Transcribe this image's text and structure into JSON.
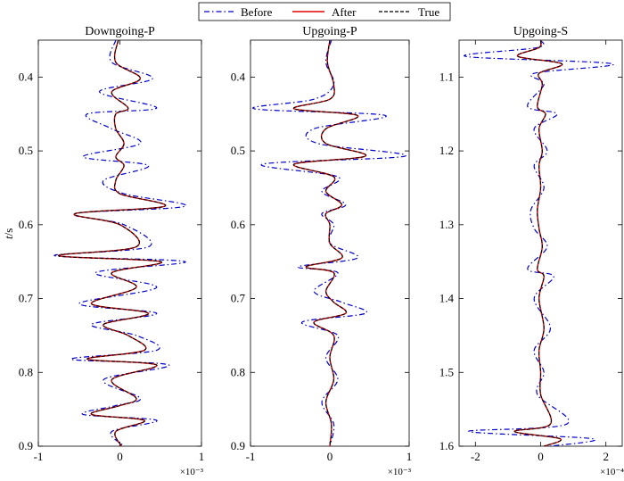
{
  "legend": {
    "entries": [
      {
        "label": "Before",
        "color": "#0000cc",
        "dash": "dashdot"
      },
      {
        "label": "After",
        "color": "#e00000",
        "dash": "solid"
      },
      {
        "label": "True",
        "color": "#000000",
        "dash": "dashed"
      }
    ]
  },
  "chart_data": [
    {
      "type": "line",
      "title": "Downgoing-P",
      "xlabel": "",
      "ylabel": "t/s",
      "xlim": [
        -1,
        1
      ],
      "xticks": [
        -1,
        0,
        1
      ],
      "xtick_labels": [
        "-1",
        "0",
        "1"
      ],
      "x_exponent": "×10⁻³",
      "ylim": [
        0.35,
        0.9
      ],
      "yticks": [
        0.4,
        0.5,
        0.6,
        0.7,
        0.8,
        0.9
      ],
      "ytick_labels": [
        "0.4",
        "0.5",
        "0.6",
        "0.7",
        "0.8",
        "0.9"
      ],
      "x_scale": 1,
      "series": [
        {
          "name": "Before",
          "t": [
            0.35,
            0.38,
            0.402,
            0.42,
            0.442,
            0.45,
            0.47,
            0.49,
            0.508,
            0.52,
            0.54,
            0.558,
            0.575,
            0.585,
            0.6,
            0.63,
            0.642,
            0.65,
            0.665,
            0.685,
            0.707,
            0.72,
            0.735,
            0.75,
            0.77,
            0.782,
            0.79,
            0.81,
            0.835,
            0.845,
            0.857,
            0.865,
            0.88,
            0.9
          ],
          "x": [
            -0.05,
            -0.1,
            0.4,
            -0.25,
            0.45,
            -0.4,
            -0.1,
            0.25,
            -0.45,
            0.35,
            -0.2,
            0.05,
            0.8,
            -0.55,
            0.05,
            0.35,
            -0.8,
            0.8,
            -0.3,
            0.45,
            -0.5,
            0.45,
            -0.35,
            0.2,
            0.45,
            -0.6,
            0.6,
            -0.2,
            0.25,
            -0.05,
            -0.45,
            0.45,
            -0.1,
            0.05
          ]
        },
        {
          "name": "After",
          "t": [
            0.35,
            0.38,
            0.402,
            0.42,
            0.442,
            0.45,
            0.47,
            0.49,
            0.508,
            0.52,
            0.54,
            0.558,
            0.575,
            0.585,
            0.6,
            0.63,
            0.642,
            0.65,
            0.665,
            0.685,
            0.707,
            0.72,
            0.735,
            0.75,
            0.77,
            0.782,
            0.79,
            0.81,
            0.835,
            0.845,
            0.857,
            0.865,
            0.88,
            0.9
          ],
          "x": [
            -0.02,
            -0.05,
            0.25,
            -0.1,
            0.1,
            -0.05,
            -0.05,
            0.05,
            -0.05,
            0.05,
            -0.05,
            0.0,
            0.55,
            -0.55,
            0.0,
            0.2,
            -0.75,
            0.5,
            -0.1,
            0.2,
            -0.35,
            0.35,
            -0.2,
            0.1,
            0.3,
            -0.4,
            0.45,
            -0.1,
            0.2,
            0.0,
            -0.35,
            0.3,
            -0.05,
            0.02
          ]
        },
        {
          "name": "True",
          "t": [
            0.35,
            0.38,
            0.402,
            0.42,
            0.442,
            0.45,
            0.47,
            0.49,
            0.508,
            0.52,
            0.54,
            0.558,
            0.575,
            0.585,
            0.6,
            0.63,
            0.642,
            0.65,
            0.665,
            0.685,
            0.707,
            0.72,
            0.735,
            0.75,
            0.77,
            0.782,
            0.79,
            0.81,
            0.835,
            0.845,
            0.857,
            0.865,
            0.88,
            0.9
          ],
          "x": [
            -0.02,
            -0.05,
            0.25,
            -0.1,
            0.1,
            -0.05,
            -0.05,
            0.05,
            -0.05,
            0.05,
            -0.05,
            0.0,
            0.55,
            -0.55,
            0.0,
            0.2,
            -0.75,
            0.5,
            -0.1,
            0.2,
            -0.35,
            0.35,
            -0.2,
            0.1,
            0.3,
            -0.4,
            0.45,
            -0.1,
            0.2,
            0.0,
            -0.35,
            0.3,
            -0.05,
            0.02
          ]
        }
      ]
    },
    {
      "type": "line",
      "title": "Upgoing-P",
      "xlabel": "",
      "ylabel": "",
      "xlim": [
        -1,
        1
      ],
      "xticks": [
        -1,
        0,
        1
      ],
      "xtick_labels": [
        "-1",
        "0",
        "1"
      ],
      "x_exponent": "×10⁻³",
      "ylim": [
        0.35,
        0.9
      ],
      "yticks": [
        0.4,
        0.5,
        0.6,
        0.7,
        0.8,
        0.9
      ],
      "ytick_labels": [
        "0.4",
        "0.5",
        "0.6",
        "0.7",
        "0.8",
        "0.9"
      ],
      "x_scale": 1,
      "series": [
        {
          "name": "Before",
          "t": [
            0.35,
            0.38,
            0.41,
            0.43,
            0.443,
            0.452,
            0.47,
            0.49,
            0.507,
            0.518,
            0.535,
            0.555,
            0.573,
            0.585,
            0.6,
            0.625,
            0.645,
            0.657,
            0.665,
            0.69,
            0.705,
            0.72,
            0.732,
            0.75,
            0.78,
            0.81,
            0.84,
            0.87,
            0.9
          ],
          "x": [
            0.02,
            -0.05,
            0.05,
            -0.2,
            -0.95,
            0.7,
            -0.2,
            -0.15,
            0.95,
            -0.85,
            0.1,
            -0.1,
            0.2,
            -0.1,
            0.05,
            0.0,
            0.35,
            -0.4,
            0.1,
            -0.2,
            0.15,
            0.45,
            -0.35,
            0.1,
            -0.05,
            0.1,
            -0.1,
            0.05,
            0.0
          ]
        },
        {
          "name": "After",
          "t": [
            0.35,
            0.38,
            0.41,
            0.43,
            0.443,
            0.452,
            0.47,
            0.49,
            0.507,
            0.518,
            0.535,
            0.555,
            0.573,
            0.585,
            0.6,
            0.625,
            0.645,
            0.657,
            0.665,
            0.69,
            0.705,
            0.72,
            0.732,
            0.75,
            0.78,
            0.81,
            0.84,
            0.87,
            0.9
          ],
          "x": [
            0.0,
            -0.03,
            0.05,
            0.0,
            -0.45,
            0.35,
            -0.05,
            -0.05,
            0.45,
            -0.45,
            0.05,
            -0.05,
            0.15,
            -0.05,
            0.0,
            0.0,
            0.15,
            -0.3,
            0.05,
            -0.05,
            0.05,
            0.2,
            -0.2,
            0.05,
            0.0,
            0.05,
            -0.05,
            0.02,
            0.0
          ]
        },
        {
          "name": "True",
          "t": [
            0.35,
            0.38,
            0.41,
            0.43,
            0.443,
            0.452,
            0.47,
            0.49,
            0.507,
            0.518,
            0.535,
            0.555,
            0.573,
            0.585,
            0.6,
            0.625,
            0.645,
            0.657,
            0.665,
            0.69,
            0.705,
            0.72,
            0.732,
            0.75,
            0.78,
            0.81,
            0.84,
            0.87,
            0.9
          ],
          "x": [
            0.0,
            -0.03,
            0.05,
            0.0,
            -0.45,
            0.35,
            -0.05,
            -0.05,
            0.45,
            -0.45,
            0.05,
            -0.05,
            0.15,
            -0.05,
            0.0,
            0.0,
            0.15,
            -0.3,
            0.05,
            -0.05,
            0.05,
            0.2,
            -0.2,
            0.05,
            0.0,
            0.05,
            -0.05,
            0.02,
            0.0
          ]
        }
      ]
    },
    {
      "type": "line",
      "title": "Upgoing-S",
      "xlabel": "",
      "ylabel": "",
      "xlim": [
        -2.5,
        2.5
      ],
      "xticks": [
        -2,
        0,
        2
      ],
      "xtick_labels": [
        "-2",
        "0",
        "2"
      ],
      "x_exponent": "×10⁻⁴",
      "ylim": [
        1.05,
        1.6
      ],
      "yticks": [
        1.1,
        1.2,
        1.3,
        1.4,
        1.5,
        1.6
      ],
      "ytick_labels": [
        "1.1",
        "1.2",
        "1.3",
        "1.4",
        "1.5",
        "1.6"
      ],
      "x_scale": 1,
      "series": [
        {
          "name": "Before",
          "t": [
            1.05,
            1.06,
            1.072,
            1.082,
            1.095,
            1.11,
            1.14,
            1.15,
            1.17,
            1.2,
            1.22,
            1.25,
            1.28,
            1.305,
            1.33,
            1.36,
            1.37,
            1.4,
            1.44,
            1.47,
            1.5,
            1.53,
            1.57,
            1.58,
            1.59,
            1.6
          ],
          "x": [
            0.0,
            -0.1,
            -2.3,
            2.2,
            -0.2,
            0.1,
            -0.4,
            0.5,
            -0.2,
            0.2,
            -0.2,
            0.1,
            -0.3,
            -0.2,
            0.2,
            -0.4,
            0.4,
            -0.2,
            0.3,
            -0.2,
            0.1,
            -0.1,
            0.8,
            -2.2,
            1.6,
            0.3
          ]
        },
        {
          "name": "After",
          "t": [
            1.05,
            1.06,
            1.072,
            1.082,
            1.095,
            1.11,
            1.14,
            1.15,
            1.17,
            1.2,
            1.22,
            1.25,
            1.28,
            1.305,
            1.33,
            1.36,
            1.37,
            1.4,
            1.44,
            1.47,
            1.5,
            1.53,
            1.57,
            1.58,
            1.59,
            1.6
          ],
          "x": [
            0.0,
            -0.05,
            -0.7,
            0.65,
            -0.05,
            0.05,
            -0.1,
            0.15,
            -0.05,
            0.05,
            -0.05,
            0.0,
            -0.1,
            -0.05,
            0.05,
            -0.1,
            0.1,
            -0.05,
            0.1,
            -0.05,
            0.0,
            0.0,
            0.3,
            -0.8,
            0.6,
            0.1
          ]
        },
        {
          "name": "True",
          "t": [
            1.05,
            1.06,
            1.072,
            1.082,
            1.095,
            1.11,
            1.14,
            1.15,
            1.17,
            1.2,
            1.22,
            1.25,
            1.28,
            1.305,
            1.33,
            1.36,
            1.37,
            1.4,
            1.44,
            1.47,
            1.5,
            1.53,
            1.57,
            1.58,
            1.59,
            1.6
          ],
          "x": [
            0.0,
            -0.05,
            -0.7,
            0.65,
            -0.05,
            0.05,
            -0.1,
            0.15,
            -0.05,
            0.05,
            -0.05,
            0.0,
            -0.1,
            -0.05,
            0.05,
            -0.1,
            0.1,
            -0.05,
            0.1,
            -0.05,
            0.0,
            0.0,
            0.3,
            -0.8,
            0.6,
            0.1
          ]
        }
      ]
    }
  ]
}
